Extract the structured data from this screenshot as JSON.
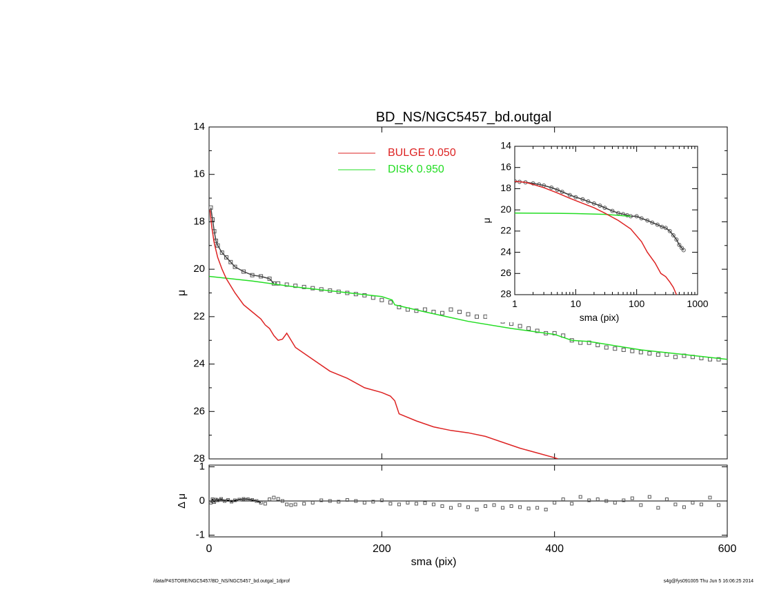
{
  "title": "BD_NS/NGC5457_bd.outgal",
  "footer_left": "/data/P4STORE/NGC5457/BD_NS/NGC5457_bd.outgal_1dprof",
  "footer_right": "s4g@fys091005  Thu Jun  5 16:06:25 2014",
  "legend": [
    {
      "label": "BULGE  0.050",
      "color": "#dd2222"
    },
    {
      "label": "DISK  0.950",
      "color": "#22dd22"
    }
  ],
  "chart_data": [
    {
      "type": "line",
      "panel": "main",
      "title": "BD_NS/NGC5457_bd.outgal",
      "xlabel": "sma (pix)",
      "ylabel": "μ",
      "xlim": [
        0,
        600
      ],
      "ylim": [
        28,
        14
      ],
      "xticks": [
        0,
        200,
        400,
        600
      ],
      "yticks": [
        14,
        16,
        18,
        20,
        22,
        24,
        26,
        28
      ],
      "series": [
        {
          "name": "BULGE  0.050",
          "color": "#dd2222",
          "style": "line",
          "x": [
            1,
            3,
            6,
            10,
            15,
            20,
            30,
            40,
            50,
            60,
            65,
            70,
            75,
            80,
            85,
            90,
            100,
            120,
            140,
            160,
            180,
            200,
            210,
            215,
            220,
            240,
            260,
            280,
            300,
            320,
            340,
            360,
            380,
            400,
            404
          ],
          "y": [
            17.5,
            18.2,
            18.9,
            19.5,
            20.0,
            20.4,
            21.0,
            21.5,
            21.8,
            22.1,
            22.35,
            22.5,
            22.8,
            23.0,
            22.95,
            22.7,
            23.3,
            23.8,
            24.3,
            24.6,
            25.0,
            25.2,
            25.35,
            25.55,
            26.1,
            26.4,
            26.65,
            26.8,
            26.9,
            27.05,
            27.3,
            27.55,
            27.75,
            27.95,
            28.0
          ]
        },
        {
          "name": "DISK  0.950",
          "color": "#22dd22",
          "style": "line",
          "x": [
            0,
            50,
            100,
            150,
            200,
            212,
            215,
            250,
            300,
            350,
            400,
            420,
            440,
            500,
            550,
            600
          ],
          "y": [
            20.3,
            20.5,
            20.75,
            20.95,
            21.15,
            21.3,
            21.5,
            21.8,
            22.2,
            22.5,
            22.75,
            23.0,
            23.05,
            23.4,
            23.6,
            23.8
          ]
        },
        {
          "name": "data",
          "color": "#555555",
          "style": "markers",
          "x": [
            2,
            4,
            6,
            8,
            10,
            15,
            20,
            25,
            30,
            40,
            50,
            60,
            70,
            75,
            80,
            90,
            100,
            110,
            120,
            130,
            140,
            150,
            160,
            170,
            180,
            190,
            200,
            210,
            220,
            230,
            240,
            250,
            260,
            270,
            280,
            290,
            300,
            310,
            320,
            330,
            340,
            350,
            360,
            370,
            380,
            390,
            400,
            410,
            420,
            430,
            440,
            450,
            460,
            470,
            480,
            490,
            500,
            510,
            520,
            530,
            540,
            550,
            560,
            570,
            580,
            590
          ],
          "y": [
            17.4,
            17.9,
            18.4,
            18.8,
            19.0,
            19.3,
            19.5,
            19.7,
            19.9,
            20.1,
            20.25,
            20.3,
            20.4,
            20.6,
            20.6,
            20.65,
            20.7,
            20.75,
            20.8,
            20.85,
            20.9,
            20.95,
            21.0,
            21.05,
            21.1,
            21.2,
            21.3,
            21.4,
            21.6,
            21.7,
            21.75,
            21.7,
            21.8,
            21.85,
            21.7,
            21.8,
            21.9,
            22.0,
            22.0,
            22.1,
            22.2,
            22.3,
            22.4,
            22.5,
            22.6,
            22.7,
            22.7,
            22.8,
            23.0,
            23.1,
            23.1,
            23.2,
            23.3,
            23.35,
            23.4,
            23.45,
            23.5,
            23.55,
            23.6,
            23.6,
            23.7,
            23.65,
            23.7,
            23.75,
            23.8,
            23.8
          ]
        }
      ]
    },
    {
      "type": "scatter",
      "panel": "residual",
      "xlabel": "sma (pix)",
      "ylabel": "Δ μ",
      "xlim": [
        0,
        600
      ],
      "ylim": [
        -1.05,
        1.05
      ],
      "xticks": [
        0,
        200,
        400,
        600
      ],
      "xtick_labels": [
        "0",
        "200",
        "400",
        "600"
      ],
      "yticks": [
        1,
        0,
        -1
      ],
      "zero_line": true,
      "series": [
        {
          "name": "residual",
          "color": "#555555",
          "x": [
            2,
            4,
            6,
            8,
            10,
            14,
            18,
            22,
            26,
            30,
            35,
            40,
            45,
            50,
            55,
            60,
            65,
            70,
            75,
            80,
            85,
            90,
            95,
            100,
            110,
            120,
            130,
            140,
            150,
            160,
            170,
            180,
            190,
            200,
            210,
            220,
            230,
            240,
            250,
            260,
            270,
            280,
            290,
            300,
            310,
            320,
            330,
            340,
            350,
            360,
            370,
            380,
            390,
            400,
            410,
            420,
            430,
            440,
            450,
            460,
            470,
            480,
            490,
            500,
            510,
            520,
            530,
            540,
            550,
            560,
            570,
            580,
            590
          ],
          "y": [
            -0.05,
            0.05,
            -0.03,
            0.04,
            0.02,
            0.06,
            0.0,
            0.03,
            -0.02,
            0.02,
            0.04,
            0.06,
            0.05,
            0.03,
            0.0,
            -0.05,
            -0.08,
            0.05,
            0.1,
            0.06,
            0.0,
            -0.1,
            -0.12,
            -0.1,
            -0.08,
            -0.05,
            0.02,
            0.0,
            -0.02,
            0.03,
            0.0,
            -0.05,
            -0.02,
            0.02,
            -0.08,
            -0.1,
            -0.05,
            -0.08,
            -0.06,
            -0.1,
            -0.15,
            -0.2,
            -0.12,
            -0.18,
            -0.25,
            -0.15,
            -0.12,
            -0.2,
            -0.15,
            -0.18,
            -0.22,
            -0.2,
            -0.25,
            -0.05,
            0.05,
            -0.08,
            0.12,
            0.02,
            0.05,
            0.0,
            -0.05,
            0.02,
            0.08,
            -0.12,
            0.12,
            -0.2,
            0.05,
            -0.1,
            -0.18,
            -0.05,
            -0.1,
            0.1,
            -0.12
          ]
        }
      ]
    },
    {
      "type": "line",
      "panel": "inset",
      "xlabel": "sma (pix)",
      "ylabel": "μ",
      "xscale": "log",
      "xlim": [
        1,
        1000
      ],
      "ylim": [
        28,
        14
      ],
      "xticks": [
        1,
        10,
        100,
        1000
      ],
      "yticks": [
        14,
        16,
        18,
        20,
        22,
        24,
        26,
        28
      ],
      "series": [
        {
          "name": "BULGE  0.050",
          "color": "#dd2222",
          "x": [
            1,
            1.5,
            2,
            3,
            5,
            8,
            12,
            20,
            30,
            50,
            80,
            120,
            150,
            200,
            250,
            300,
            350,
            400,
            450
          ],
          "y": [
            17.3,
            17.4,
            17.6,
            17.9,
            18.4,
            18.9,
            19.3,
            19.8,
            20.3,
            21.0,
            21.8,
            23.0,
            24.0,
            25.0,
            26.0,
            26.3,
            26.8,
            27.3,
            28.0
          ]
        },
        {
          "name": "DISK  0.950",
          "color": "#22dd22",
          "x": [
            1,
            5,
            10,
            30,
            60,
            80
          ],
          "y": [
            20.3,
            20.32,
            20.35,
            20.42,
            20.55,
            20.6
          ]
        },
        {
          "name": "data",
          "color": "#444444",
          "x": [
            1,
            1.2,
            1.5,
            2,
            2.5,
            3,
            4,
            5,
            6,
            8,
            10,
            13,
            16,
            20,
            25,
            30,
            40,
            50,
            60,
            70,
            80,
            100,
            120,
            150,
            180,
            220,
            260,
            300,
            350,
            400,
            450,
            500,
            550,
            590
          ],
          "y": [
            17.3,
            17.35,
            17.4,
            17.5,
            17.6,
            17.7,
            17.9,
            18.1,
            18.3,
            18.6,
            18.8,
            19.0,
            19.2,
            19.4,
            19.6,
            19.8,
            20.1,
            20.3,
            20.4,
            20.5,
            20.6,
            20.6,
            20.8,
            21.0,
            21.2,
            21.4,
            21.6,
            21.7,
            22.0,
            22.4,
            22.8,
            23.3,
            23.6,
            23.8
          ]
        }
      ]
    }
  ]
}
